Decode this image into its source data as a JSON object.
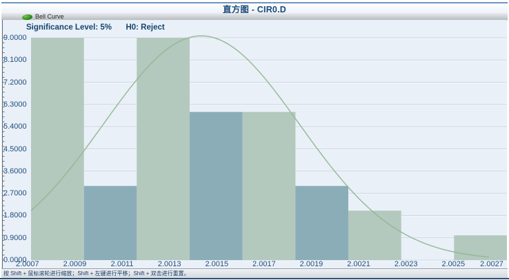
{
  "header": {
    "title": "直方图 - CIR0.D",
    "significance_label": "Significance Level: 5%",
    "h0_label": "H0: Reject"
  },
  "legend": {
    "items": [
      {
        "label": "Bell Curve",
        "icon": "green-ellipse-icon",
        "color": "#2e8b2e"
      }
    ]
  },
  "status_bar": {
    "hint": "按 Shift + 鼠标滚轮进行缩放；Shift + 左键进行平移；Shift + 双击进行重置。"
  },
  "chart_data": {
    "type": "bar",
    "subtype": "histogram-with-bell-curve",
    "title": "直方图 - CIR0.D",
    "xlabel": "",
    "ylabel": "",
    "x_range": [
      2.000715,
      2.0027265
    ],
    "y_range": [
      0,
      9
    ],
    "yticks": [
      "9.0000",
      "8.1000",
      "7.2000",
      "6.3000",
      "5.4000",
      "4.5000",
      "3.6000",
      "2.7000",
      "1.8000",
      "0.9000",
      "0.0000"
    ],
    "xticks": [
      "2.0007",
      "2.0009",
      "2.0011",
      "2.0013",
      "2.0015",
      "2.0017",
      "2.0019",
      "2.0021",
      "2.0023",
      "2.0025",
      "2.0027"
    ],
    "bins": {
      "first_edge": 2.000715,
      "width": 0.0002235,
      "counts": [
        9,
        3,
        9,
        6,
        6,
        3,
        2,
        0,
        1
      ],
      "colors": [
        "#b3c9bd",
        "#8badb8"
      ]
    },
    "curve": {
      "name": "Bell Curve",
      "mean": 2.001435,
      "sigma": 0.000414,
      "amplitude": 9.08,
      "x_start": 2.000715,
      "x_end": 2.00265,
      "color": "#94b794"
    },
    "grid": "horizontal",
    "grid_color": "#ccd4df",
    "grid_bevel_color": "#f7fafd",
    "plot_bg": "#e9f0f8",
    "axis_line_color": "#5d6a76",
    "axis_label_color": "#234d7b",
    "legend_position": "top-left"
  }
}
